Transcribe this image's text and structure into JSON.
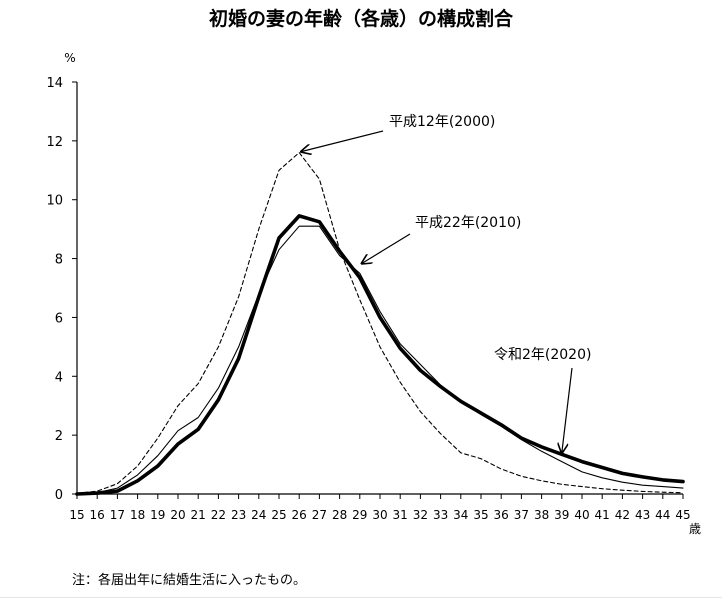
{
  "chart_data": {
    "type": "line",
    "title": "初婚の妻の年齢（各歳）の構成割合",
    "y_unit_label": "%",
    "x_unit_label": "歳",
    "x": [
      15,
      16,
      17,
      18,
      19,
      20,
      21,
      22,
      23,
      24,
      25,
      26,
      27,
      28,
      29,
      30,
      31,
      32,
      33,
      34,
      35,
      36,
      37,
      38,
      39,
      40,
      41,
      42,
      43,
      44,
      45
    ],
    "ylim": [
      0,
      14
    ],
    "yticks": [
      0,
      2,
      4,
      6,
      8,
      10,
      12,
      14
    ],
    "grid": false,
    "series": [
      {
        "name": "平成12年(2000)",
        "style": "dashed",
        "values": [
          0.02,
          0.1,
          0.35,
          0.95,
          1.9,
          3.0,
          3.75,
          5.0,
          6.7,
          9.0,
          11.0,
          11.6,
          10.7,
          8.3,
          6.6,
          5.0,
          3.8,
          2.8,
          2.05,
          1.4,
          1.2,
          0.85,
          0.6,
          0.45,
          0.33,
          0.25,
          0.18,
          0.13,
          0.09,
          0.06,
          0.04
        ]
      },
      {
        "name": "平成22年(2010)",
        "style": "thin",
        "values": [
          0.0,
          0.05,
          0.2,
          0.65,
          1.3,
          2.15,
          2.6,
          3.6,
          5.0,
          6.8,
          8.3,
          9.1,
          9.1,
          8.1,
          7.5,
          6.2,
          5.1,
          4.4,
          3.7,
          3.15,
          2.7,
          2.3,
          1.85,
          1.45,
          1.1,
          0.75,
          0.55,
          0.4,
          0.3,
          0.25,
          0.2
        ]
      },
      {
        "name": "令和2年(2020)",
        "style": "thick",
        "values": [
          0.0,
          0.03,
          0.1,
          0.45,
          0.95,
          1.7,
          2.2,
          3.2,
          4.6,
          6.7,
          8.7,
          9.45,
          9.25,
          8.25,
          7.35,
          6.0,
          4.95,
          4.2,
          3.65,
          3.15,
          2.75,
          2.35,
          1.9,
          1.6,
          1.35,
          1.1,
          0.9,
          0.7,
          0.58,
          0.48,
          0.42
        ]
      }
    ],
    "annotations": [
      {
        "text": "平成12年(2000)",
        "series": 0,
        "x": 26,
        "y": 11.6
      },
      {
        "text": "平成22年(2010)",
        "series": 1,
        "x": 29,
        "y": 7.8
      },
      {
        "text": "令和2年(2020)",
        "series": 2,
        "x": 39,
        "y": 1.4
      }
    ]
  },
  "footnote": "注：各届出年に結婚生活に入ったもの。"
}
